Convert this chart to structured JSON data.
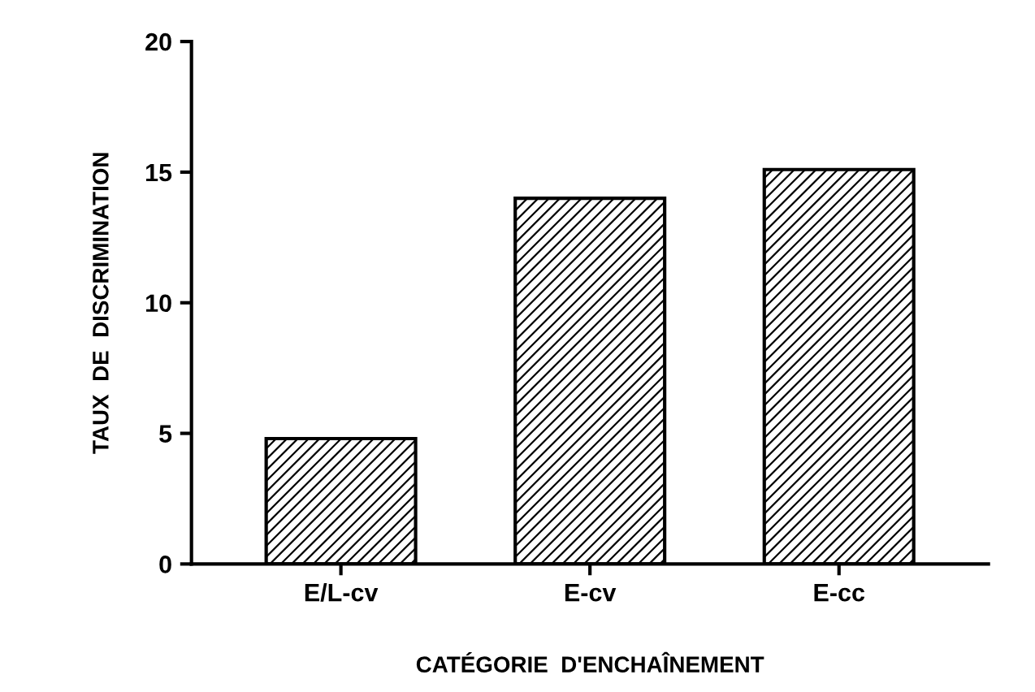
{
  "chart_data": {
    "type": "bar",
    "xlabel": "CATÉGORIE  D'ENCHAÎNEMENT",
    "ylabel": "TAUX  DE  DISCRIMINATION",
    "categories": [
      "E/L-cv",
      "E-cv",
      "E-cc"
    ],
    "values": [
      4.8,
      14.0,
      15.1
    ],
    "color": "#000000",
    "ylim": [
      0,
      20
    ],
    "yticks": [
      0,
      5,
      10,
      15,
      20
    ],
    "grid": false,
    "legend": false
  }
}
